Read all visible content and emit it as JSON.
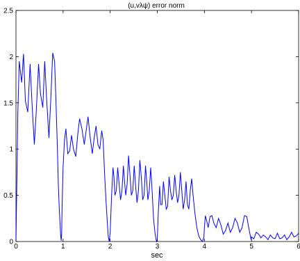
{
  "chart_data": {
    "type": "line",
    "title": "(u,vλψ) error norm",
    "xlabel": "sec",
    "ylabel": "",
    "xlim": [
      0,
      6
    ],
    "ylim": [
      0,
      2.5
    ],
    "xticks": [
      "0",
      "1",
      "2",
      "3",
      "4",
      "5",
      "6"
    ],
    "yticks": [
      "0",
      "0.5",
      "1",
      "1.5",
      "2",
      "2.5"
    ],
    "grid": false,
    "series": [
      {
        "color": "#0000ff",
        "x": [
          0,
          0.04,
          0.07,
          0.12,
          0.16,
          0.2,
          0.25,
          0.3,
          0.34,
          0.39,
          0.43,
          0.48,
          0.52,
          0.57,
          0.61,
          0.65,
          0.7,
          0.74,
          0.78,
          0.82,
          0.85,
          0.88,
          0.9,
          0.92,
          0.94,
          0.95,
          0.96,
          0.97,
          0.98,
          1.0,
          1.03,
          1.06,
          1.1,
          1.14,
          1.18,
          1.22,
          1.27,
          1.31,
          1.35,
          1.4,
          1.45,
          1.49,
          1.53,
          1.57,
          1.62,
          1.66,
          1.7,
          1.74,
          1.78,
          1.82,
          1.85,
          1.88,
          1.91,
          1.94,
          1.96,
          1.98,
          2.0,
          2.03,
          2.06,
          2.08,
          2.1,
          2.13,
          2.16,
          2.19,
          2.22,
          2.25,
          2.28,
          2.3,
          2.33,
          2.36,
          2.39,
          2.42,
          2.45,
          2.48,
          2.51,
          2.54,
          2.57,
          2.6,
          2.63,
          2.66,
          2.69,
          2.72,
          2.75,
          2.78,
          2.8,
          2.83,
          2.86,
          2.89,
          2.92,
          2.95,
          2.97,
          2.985,
          3.0,
          3.02,
          3.05,
          3.07,
          3.1,
          3.13,
          3.16,
          3.19,
          3.22,
          3.25,
          3.28,
          3.31,
          3.34,
          3.37,
          3.4,
          3.43,
          3.46,
          3.49,
          3.52,
          3.55,
          3.58,
          3.61,
          3.64,
          3.67,
          3.7,
          3.73,
          3.76,
          3.8,
          3.84,
          3.88,
          3.92,
          3.96,
          3.99,
          4.0,
          4.02,
          4.05,
          4.08,
          4.12,
          4.16,
          4.2,
          4.25,
          4.3,
          4.35,
          4.4,
          4.45,
          4.5,
          4.55,
          4.6,
          4.65,
          4.7,
          4.75,
          4.8,
          4.85,
          4.9,
          4.93,
          4.96,
          4.98,
          4.99,
          5.0,
          5.05,
          5.1,
          5.15,
          5.2,
          5.25,
          5.3,
          5.35,
          5.4,
          5.45,
          5.5,
          5.55,
          5.6,
          5.65,
          5.7,
          5.75,
          5.8,
          5.85,
          5.9,
          5.95,
          6.0
        ],
        "y": [
          0.0,
          1.4,
          1.95,
          1.72,
          2.03,
          1.52,
          1.4,
          1.92,
          1.5,
          1.05,
          1.4,
          1.92,
          1.6,
          1.45,
          1.95,
          1.55,
          1.12,
          1.55,
          2.04,
          1.95,
          1.5,
          1.0,
          0.6,
          0.35,
          0.15,
          0.06,
          0.01,
          0.08,
          0.4,
          0.8,
          1.1,
          1.22,
          0.95,
          0.98,
          1.15,
          1.0,
          0.92,
          1.15,
          1.33,
          1.22,
          1.05,
          1.2,
          1.35,
          1.15,
          0.95,
          1.12,
          1.25,
          1.05,
          1.0,
          1.2,
          1.1,
          0.75,
          0.45,
          0.2,
          0.05,
          0.0,
          0.1,
          0.5,
          0.8,
          0.7,
          0.5,
          0.55,
          0.8,
          0.62,
          0.45,
          0.55,
          0.82,
          0.68,
          0.5,
          0.62,
          0.93,
          0.72,
          0.5,
          0.55,
          0.82,
          0.6,
          0.42,
          0.55,
          0.88,
          0.7,
          0.45,
          0.5,
          0.82,
          0.62,
          0.45,
          0.55,
          0.8,
          0.55,
          0.25,
          0.1,
          0.03,
          0.0,
          0.02,
          0.3,
          0.6,
          0.4,
          0.4,
          0.65,
          0.5,
          0.35,
          0.38,
          0.7,
          0.55,
          0.45,
          0.5,
          0.72,
          0.55,
          0.42,
          0.5,
          0.75,
          0.55,
          0.35,
          0.45,
          0.65,
          0.4,
          0.35,
          0.55,
          0.68,
          0.5,
          0.3,
          0.15,
          0.06,
          0.02,
          0.0,
          0.05,
          0.15,
          0.28,
          0.22,
          0.15,
          0.27,
          0.28,
          0.2,
          0.15,
          0.25,
          0.18,
          0.08,
          0.12,
          0.2,
          0.1,
          0.15,
          0.25,
          0.2,
          0.1,
          0.15,
          0.28,
          0.27,
          0.18,
          0.1,
          0.05,
          0.02,
          0.05,
          0.03,
          0.1,
          0.08,
          0.04,
          0.07,
          0.05,
          0.02,
          0.07,
          0.04,
          0.03,
          0.09,
          0.03,
          0.04,
          0.07,
          0.02,
          0.05,
          0.1,
          0.05,
          0.06,
          0.09
        ]
      }
    ]
  }
}
